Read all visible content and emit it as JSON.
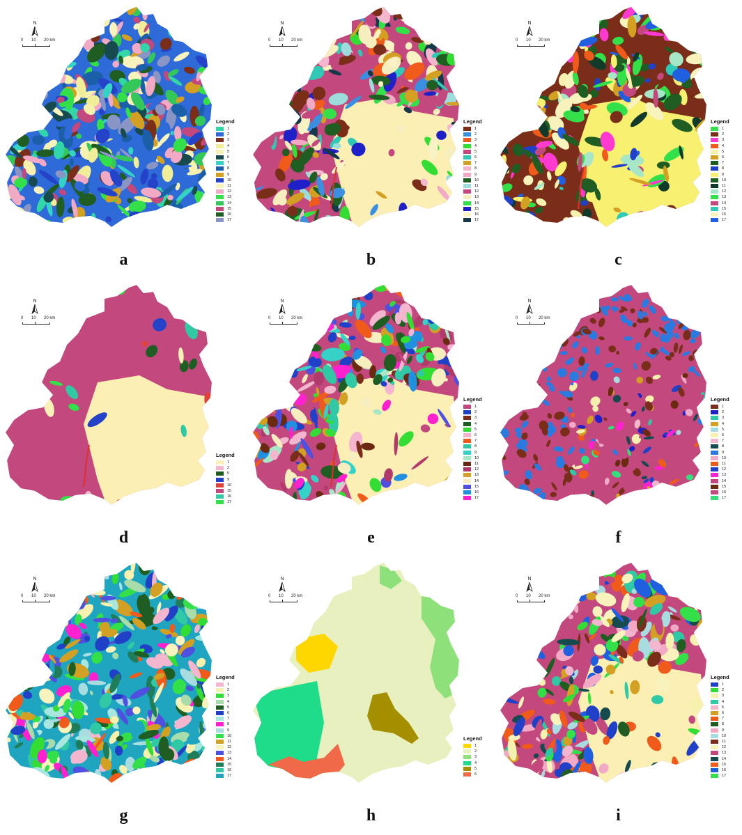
{
  "map_common": {
    "north_label": "N",
    "scale_ticks": [
      "0",
      "10",
      "20 km"
    ],
    "legend_title": "Legend"
  },
  "panels": [
    {
      "label": "a",
      "legend": [
        {
          "label": "1",
          "color": "#33d6a8"
        },
        {
          "label": "2",
          "color": "#2e6ad8"
        },
        {
          "label": "3",
          "color": "#7a2e1a"
        },
        {
          "label": "4",
          "color": "#f1ee9a"
        },
        {
          "label": "5",
          "color": "#f7f1b0"
        },
        {
          "label": "6",
          "color": "#174a4e"
        },
        {
          "label": "7",
          "color": "#36d2c8"
        },
        {
          "label": "8",
          "color": "#1a5fa8"
        },
        {
          "label": "9",
          "color": "#d4a024"
        },
        {
          "label": "10",
          "color": "#2443c9"
        },
        {
          "label": "11",
          "color": "#f8f2bc"
        },
        {
          "label": "12",
          "color": "#f2a9c6"
        },
        {
          "label": "13",
          "color": "#33e04a"
        },
        {
          "label": "14",
          "color": "#34c85a"
        },
        {
          "label": "15",
          "color": "#c2487e"
        },
        {
          "label": "16",
          "color": "#1f5d23"
        },
        {
          "label": "17",
          "color": "#8895c5"
        }
      ]
    },
    {
      "label": "b",
      "legend": [
        {
          "label": "1",
          "color": "#7a2e1a"
        },
        {
          "label": "2",
          "color": "#3a8fe0"
        },
        {
          "label": "3",
          "color": "#f05a1a"
        },
        {
          "label": "4",
          "color": "#33dd33"
        },
        {
          "label": "5",
          "color": "#c2487e"
        },
        {
          "label": "6",
          "color": "#31c9b5"
        },
        {
          "label": "7",
          "color": "#d4a024"
        },
        {
          "label": "8",
          "color": "#f4b6cf"
        },
        {
          "label": "9",
          "color": "#f2a9c6"
        },
        {
          "label": "10",
          "color": "#1f5d23"
        },
        {
          "label": "11",
          "color": "#9ddcdc"
        },
        {
          "label": "12",
          "color": "#c2487e"
        },
        {
          "label": "13",
          "color": "#f7eec0"
        },
        {
          "label": "14",
          "color": "#33e04a"
        },
        {
          "label": "15",
          "color": "#2020c8"
        },
        {
          "label": "16",
          "color": "#f9f2c4"
        },
        {
          "label": "17",
          "color": "#17384a"
        }
      ]
    },
    {
      "label": "c",
      "legend": [
        {
          "label": "1",
          "color": "#33e04a"
        },
        {
          "label": "2",
          "color": "#7a2e1a"
        },
        {
          "label": "3",
          "color": "#ff3ad0"
        },
        {
          "label": "4",
          "color": "#f05a1a"
        },
        {
          "label": "5",
          "color": "#f7f1b0"
        },
        {
          "label": "6",
          "color": "#d4a024"
        },
        {
          "label": "7",
          "color": "#1f5d23"
        },
        {
          "label": "8",
          "color": "#2040c8"
        },
        {
          "label": "9",
          "color": "#f8f070"
        },
        {
          "label": "10",
          "color": "#1f5d23"
        },
        {
          "label": "11",
          "color": "#123a2a"
        },
        {
          "label": "12",
          "color": "#a8e6c8"
        },
        {
          "label": "13",
          "color": "#33e04a"
        },
        {
          "label": "14",
          "color": "#c2487e"
        },
        {
          "label": "15",
          "color": "#31c9b5"
        },
        {
          "label": "16",
          "color": "#f8f2bc"
        },
        {
          "label": "17",
          "color": "#2060e0"
        }
      ]
    },
    {
      "label": "d",
      "legend": [
        {
          "label": "1",
          "color": "#fbf1b8"
        },
        {
          "label": "2",
          "color": "#f4b6cf"
        },
        {
          "label": "5",
          "color": "#1f5d23"
        },
        {
          "label": "9",
          "color": "#2443c9"
        },
        {
          "label": "10",
          "color": "#e0413a"
        },
        {
          "label": "15",
          "color": "#c2487e"
        },
        {
          "label": "16",
          "color": "#31c9a5"
        },
        {
          "label": "17",
          "color": "#33e04a"
        }
      ]
    },
    {
      "label": "e",
      "legend": [
        {
          "label": "1",
          "color": "#c2487e"
        },
        {
          "label": "2",
          "color": "#2040c8"
        },
        {
          "label": "3",
          "color": "#7a2e1a"
        },
        {
          "label": "4",
          "color": "#1f5d23"
        },
        {
          "label": "5",
          "color": "#33dd33"
        },
        {
          "label": "6",
          "color": "#f4b6cf"
        },
        {
          "label": "7",
          "color": "#f05a1a"
        },
        {
          "label": "8",
          "color": "#31c9a5"
        },
        {
          "label": "9",
          "color": "#36d2c8"
        },
        {
          "label": "10",
          "color": "#a8e6c8"
        },
        {
          "label": "11",
          "color": "#6a2a12"
        },
        {
          "label": "12",
          "color": "#b03a6a"
        },
        {
          "label": "13",
          "color": "#d4a024"
        },
        {
          "label": "14",
          "color": "#f7eec0"
        },
        {
          "label": "15",
          "color": "#5050e0"
        },
        {
          "label": "16",
          "color": "#2090e0"
        },
        {
          "label": "17",
          "color": "#ff20d0"
        }
      ]
    },
    {
      "label": "f",
      "legend": [
        {
          "label": "1",
          "color": "#7a2e1a"
        },
        {
          "label": "2",
          "color": "#2020c8"
        },
        {
          "label": "3",
          "color": "#31c9a5"
        },
        {
          "label": "4",
          "color": "#d4a024"
        },
        {
          "label": "5",
          "color": "#a8dce0"
        },
        {
          "label": "6",
          "color": "#f7f1b0"
        },
        {
          "label": "7",
          "color": "#f4b6cf"
        },
        {
          "label": "8",
          "color": "#174a4e"
        },
        {
          "label": "9",
          "color": "#2a7ae0"
        },
        {
          "label": "10",
          "color": "#f2a9c6"
        },
        {
          "label": "11",
          "color": "#f05a1a"
        },
        {
          "label": "12",
          "color": "#2040c8"
        },
        {
          "label": "13",
          "color": "#ff20d0"
        },
        {
          "label": "14",
          "color": "#c2487e"
        },
        {
          "label": "15",
          "color": "#6a2a12"
        },
        {
          "label": "16",
          "color": "#c2487e"
        },
        {
          "label": "17",
          "color": "#33e07a"
        }
      ]
    },
    {
      "label": "g",
      "legend": [
        {
          "label": "1",
          "color": "#f4b6cf"
        },
        {
          "label": "2",
          "color": "#f7f1b0"
        },
        {
          "label": "3",
          "color": "#33dd33"
        },
        {
          "label": "4",
          "color": "#a8dcaa"
        },
        {
          "label": "5",
          "color": "#1f5d23"
        },
        {
          "label": "6",
          "color": "#2040c8"
        },
        {
          "label": "7",
          "color": "#a8e6e0"
        },
        {
          "label": "8",
          "color": "#ff20d0"
        },
        {
          "label": "9",
          "color": "#a8dce0"
        },
        {
          "label": "10",
          "color": "#33e04a"
        },
        {
          "label": "11",
          "color": "#d4a024"
        },
        {
          "label": "12",
          "color": "#f8f2bc"
        },
        {
          "label": "13",
          "color": "#5050e0"
        },
        {
          "label": "14",
          "color": "#f05a1a"
        },
        {
          "label": "15",
          "color": "#1f7d5a"
        },
        {
          "label": "16",
          "color": "#31c9a5"
        },
        {
          "label": "17",
          "color": "#1fa5c0"
        }
      ]
    },
    {
      "label": "h",
      "legend": [
        {
          "label": "1",
          "color": "#ffd700"
        },
        {
          "label": "2",
          "color": "#e8f0c0"
        },
        {
          "label": "3",
          "color": "#8ee07a"
        },
        {
          "label": "4",
          "color": "#1fdc8a"
        },
        {
          "label": "5",
          "color": "#a38f00"
        },
        {
          "label": "6",
          "color": "#f06a4a"
        }
      ]
    },
    {
      "label": "i",
      "legend": [
        {
          "label": "1",
          "color": "#2040c8"
        },
        {
          "label": "2",
          "color": "#33dd33"
        },
        {
          "label": "3",
          "color": "#f7f1b0"
        },
        {
          "label": "4",
          "color": "#31c9a5"
        },
        {
          "label": "5",
          "color": "#f4b6cf"
        },
        {
          "label": "6",
          "color": "#d4a024"
        },
        {
          "label": "7",
          "color": "#f05a1a"
        },
        {
          "label": "8",
          "color": "#1f5d23"
        },
        {
          "label": "9",
          "color": "#f2a9c6"
        },
        {
          "label": "10",
          "color": "#a8dce0"
        },
        {
          "label": "11",
          "color": "#7a2e1a"
        },
        {
          "label": "12",
          "color": "#f8f2bc"
        },
        {
          "label": "13",
          "color": "#c2487e"
        },
        {
          "label": "14",
          "color": "#174a4e"
        },
        {
          "label": "15",
          "color": "#f05a1a"
        },
        {
          "label": "16",
          "color": "#2060e0"
        },
        {
          "label": "17",
          "color": "#33e04a"
        }
      ]
    }
  ]
}
